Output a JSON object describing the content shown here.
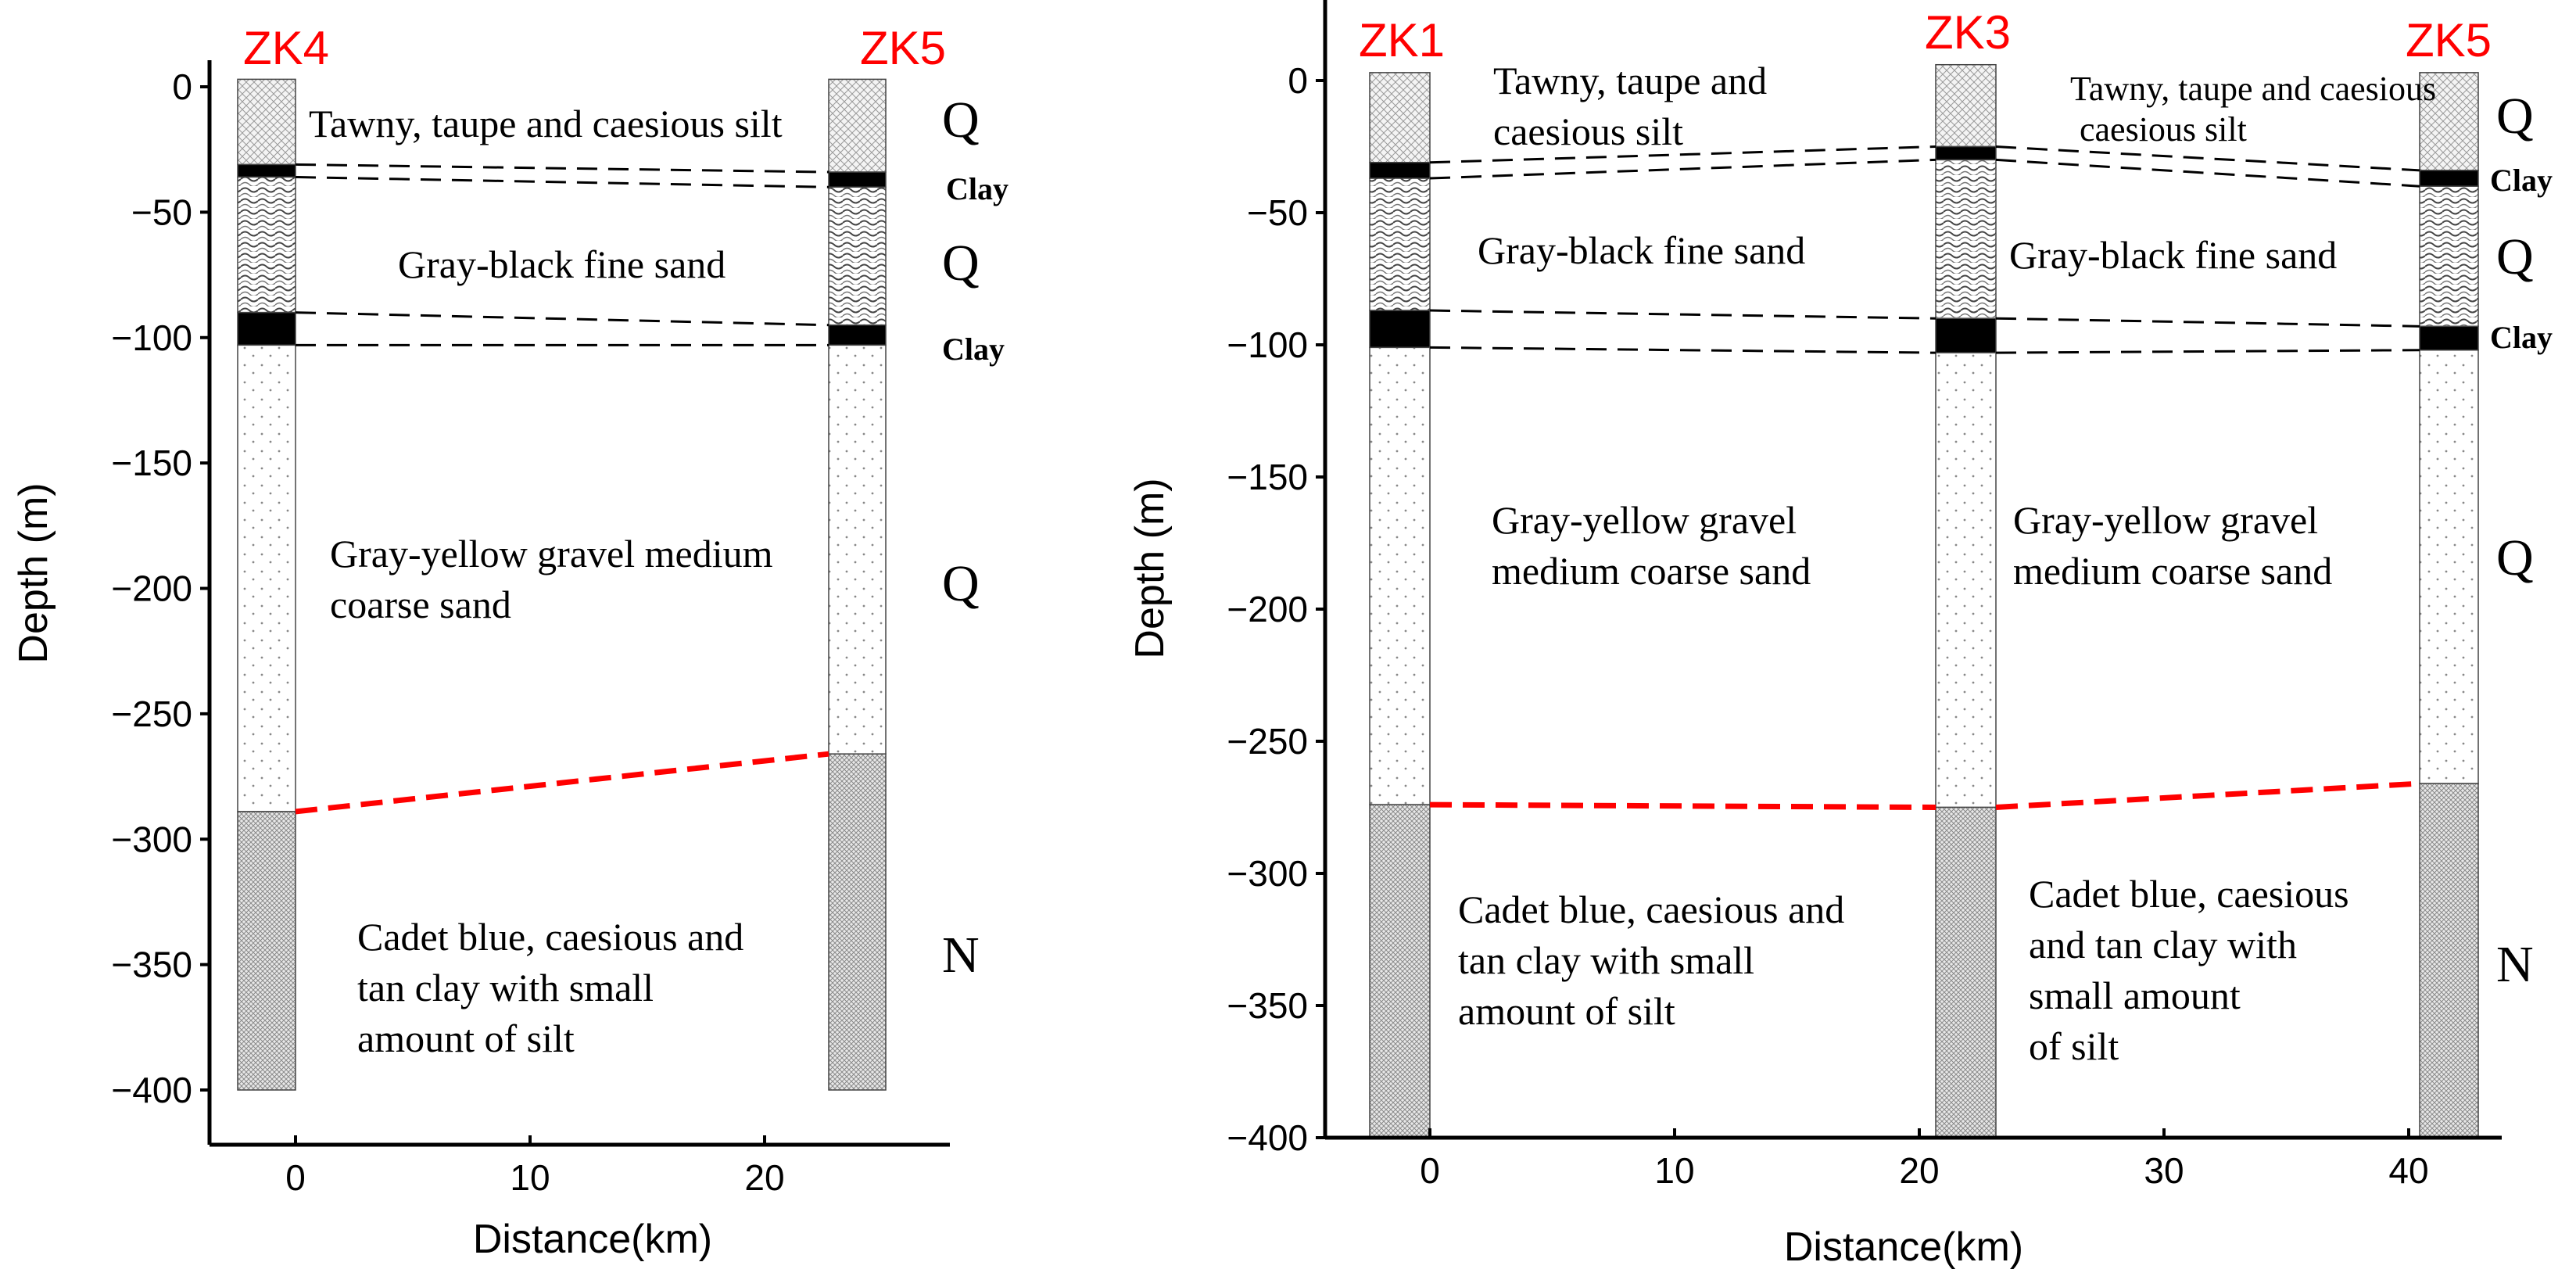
{
  "colors": {
    "well_label": "#ff0000",
    "boundary": "#ff0000",
    "axis": "#000000",
    "clay": "#000000"
  },
  "panels": [
    {
      "name": "left",
      "y_ticks": [
        0,
        -50,
        -100,
        -150,
        -200,
        -250,
        -300,
        -350,
        -400
      ],
      "x_ticks": [
        0,
        10,
        20
      ],
      "x_label": "Distance(km)",
      "y_label": "Depth (m)",
      "wells": [
        {
          "id": "ZK4",
          "layers": [
            {
              "type": "silt",
              "top": 3,
              "bottom": -31
            },
            {
              "type": "clay",
              "top": -31,
              "bottom": -36
            },
            {
              "type": "fine",
              "top": -36,
              "bottom": -90
            },
            {
              "type": "clay",
              "top": -90,
              "bottom": -103
            },
            {
              "type": "gravel",
              "top": -103,
              "bottom": -289
            },
            {
              "type": "ncl",
              "top": -289,
              "bottom": -400
            }
          ]
        },
        {
          "id": "ZK5",
          "layers": [
            {
              "type": "silt",
              "top": 3,
              "bottom": -34
            },
            {
              "type": "clay",
              "top": -34,
              "bottom": -40
            },
            {
              "type": "fine",
              "top": -40,
              "bottom": -95
            },
            {
              "type": "clay",
              "top": -95,
              "bottom": -103
            },
            {
              "type": "gravel",
              "top": -103,
              "bottom": -266
            },
            {
              "type": "ncl",
              "top": -266,
              "bottom": -400
            }
          ]
        }
      ],
      "texts": {
        "silt": "Tawny, taupe and caesious silt",
        "fine": "Gray-black fine sand",
        "gravel_1": "Gray-yellow gravel medium",
        "gravel_2": "coarse sand",
        "ncl_1": "Cadet blue, caesious and",
        "ncl_2": "tan clay with small",
        "ncl_3": "amount of  silt",
        "q1": "Q",
        "q2": "Q",
        "q3": "Q",
        "n": "N",
        "clay1": "Clay",
        "clay2": "Clay"
      }
    },
    {
      "name": "right",
      "y_ticks": [
        0,
        -50,
        -100,
        -150,
        -200,
        -250,
        -300,
        -350,
        -400
      ],
      "x_ticks": [
        0,
        10,
        20,
        30,
        40
      ],
      "x_label": "Distance(km)",
      "y_label": "Depth (m)",
      "wells": [
        {
          "id": "ZK1",
          "layers": [
            {
              "type": "silt",
              "top": 3,
              "bottom": -31
            },
            {
              "type": "clay",
              "top": -31,
              "bottom": -37
            },
            {
              "type": "fine",
              "top": -37,
              "bottom": -87
            },
            {
              "type": "clay",
              "top": -87,
              "bottom": -101
            },
            {
              "type": "gravel",
              "top": -101,
              "bottom": -274
            },
            {
              "type": "ncl",
              "top": -274,
              "bottom": -400
            }
          ]
        },
        {
          "id": "ZK3",
          "layers": [
            {
              "type": "silt",
              "top": 6,
              "bottom": -25
            },
            {
              "type": "clay",
              "top": -25,
              "bottom": -30
            },
            {
              "type": "fine",
              "top": -30,
              "bottom": -90
            },
            {
              "type": "clay",
              "top": -90,
              "bottom": -103
            },
            {
              "type": "gravel",
              "top": -103,
              "bottom": -275
            },
            {
              "type": "ncl",
              "top": -275,
              "bottom": -400
            }
          ]
        },
        {
          "id": "ZK5",
          "layers": [
            {
              "type": "silt",
              "top": 3,
              "bottom": -34
            },
            {
              "type": "clay",
              "top": -34,
              "bottom": -40
            },
            {
              "type": "fine",
              "top": -40,
              "bottom": -93
            },
            {
              "type": "clay",
              "top": -93,
              "bottom": -102
            },
            {
              "type": "gravel",
              "top": -102,
              "bottom": -266
            },
            {
              "type": "ncl",
              "top": -266,
              "bottom": -400
            }
          ]
        }
      ],
      "texts": {
        "silt_a1": "Tawny, taupe and",
        "silt_a2": "caesious silt",
        "silt_b1": "Tawny, taupe and caesious",
        "silt_b2": "caesious silt",
        "fine_a": "Gray-black fine sand",
        "fine_b": "Gray-black fine sand",
        "gravel_a1": "Gray-yellow gravel",
        "gravel_a2": "medium coarse sand",
        "gravel_b1": "Gray-yellow gravel",
        "gravel_b2": "medium coarse sand",
        "ncl_a1": "Cadet blue, caesious and",
        "ncl_a2": "tan clay with small",
        "ncl_a3": "amount of  silt",
        "ncl_b1": "Cadet blue, caesious",
        "ncl_b2": "and tan clay with",
        "ncl_b3": "small amount",
        "ncl_b4": "of  silt",
        "q1": "Q",
        "q2": "Q",
        "q3": "Q",
        "n": "N",
        "clay1": "Clay",
        "clay2": "Clay"
      }
    }
  ]
}
